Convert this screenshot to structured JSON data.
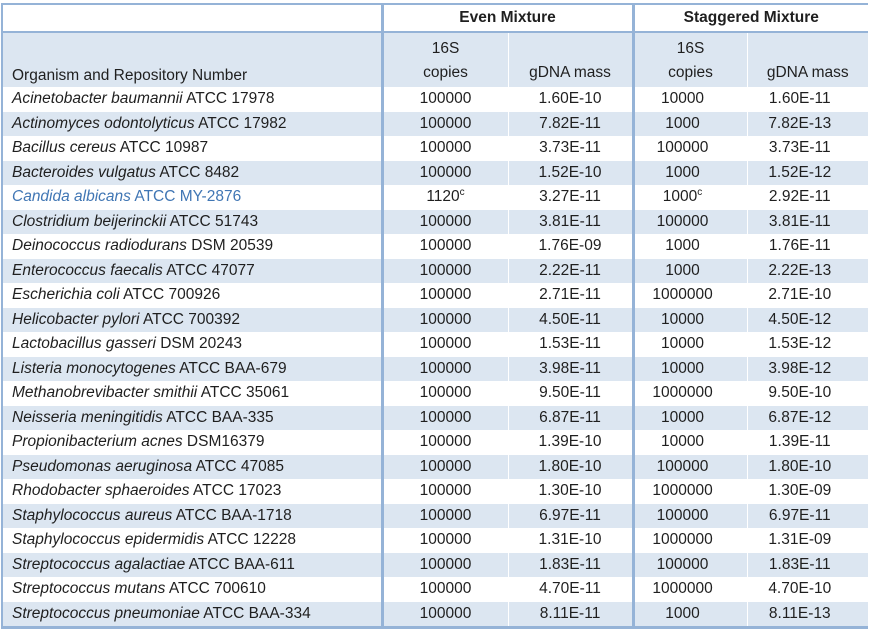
{
  "table": {
    "col1_header": "Organism and Repository Number",
    "group_headers": [
      "Even Mixture",
      "Staggered Mixture"
    ],
    "sub_headers": [
      {
        "copies_line1": "16S",
        "copies_line2": "copies",
        "gdna": "gDNA mass"
      },
      {
        "copies_line1": "16S",
        "copies_line2": "copies",
        "gdna": "gDNA mass"
      }
    ],
    "colors": {
      "row_shade": "#DCE6F1",
      "border_blue": "#95B3D7",
      "highlight_text": "#4076B4"
    },
    "rows": [
      {
        "organism": "Acinetobacter baumannii",
        "repo": "ATCC 17978",
        "even_16s": "100000",
        "even_16s_sup": "",
        "even_gdna": "1.60E-10",
        "stag_16s": "10000",
        "stag_16s_sup": "",
        "stag_gdna": "1.60E-11"
      },
      {
        "organism": "Actinomyces odontolyticus",
        "repo": "ATCC 17982",
        "even_16s": "100000",
        "even_16s_sup": "",
        "even_gdna": "7.82E-11",
        "stag_16s": "1000",
        "stag_16s_sup": "",
        "stag_gdna": "7.82E-13"
      },
      {
        "organism": "Bacillus cereus",
        "repo": "ATCC 10987",
        "even_16s": "100000",
        "even_16s_sup": "",
        "even_gdna": "3.73E-11",
        "stag_16s": "100000",
        "stag_16s_sup": "",
        "stag_gdna": "3.73E-11"
      },
      {
        "organism": "Bacteroides vulgatus",
        "repo": "ATCC 8482",
        "even_16s": "100000",
        "even_16s_sup": "",
        "even_gdna": "1.52E-10",
        "stag_16s": "1000",
        "stag_16s_sup": "",
        "stag_gdna": "1.52E-12"
      },
      {
        "organism": "Candida albicans",
        "repo": "ATCC MY-2876",
        "even_16s": "1120",
        "even_16s_sup": "c",
        "even_gdna": "3.27E-11",
        "stag_16s": "1000",
        "stag_16s_sup": "c",
        "stag_gdna": "2.92E-11",
        "highlight": true
      },
      {
        "organism": "Clostridium beijerinckii",
        "repo": "ATCC 51743",
        "even_16s": "100000",
        "even_16s_sup": "",
        "even_gdna": "3.81E-11",
        "stag_16s": "100000",
        "stag_16s_sup": "",
        "stag_gdna": "3.81E-11"
      },
      {
        "organism": "Deinococcus radiodurans",
        "repo": "DSM 20539",
        "even_16s": "100000",
        "even_16s_sup": "",
        "even_gdna": "1.76E-09",
        "stag_16s": "1000",
        "stag_16s_sup": "",
        "stag_gdna": "1.76E-11"
      },
      {
        "organism": "Enterococcus faecalis",
        "repo": "ATCC 47077",
        "even_16s": "100000",
        "even_16s_sup": "",
        "even_gdna": "2.22E-11",
        "stag_16s": "1000",
        "stag_16s_sup": "",
        "stag_gdna": "2.22E-13"
      },
      {
        "organism": "Escherichia coli",
        "repo": "ATCC 700926",
        "even_16s": "100000",
        "even_16s_sup": "",
        "even_gdna": "2.71E-11",
        "stag_16s": "1000000",
        "stag_16s_sup": "",
        "stag_gdna": "2.71E-10"
      },
      {
        "organism": "Helicobacter pylori",
        "repo": "ATCC 700392",
        "even_16s": "100000",
        "even_16s_sup": "",
        "even_gdna": "4.50E-11",
        "stag_16s": "10000",
        "stag_16s_sup": "",
        "stag_gdna": "4.50E-12"
      },
      {
        "organism": "Lactobacillus gasseri",
        "repo": "DSM 20243",
        "even_16s": "100000",
        "even_16s_sup": "",
        "even_gdna": "1.53E-11",
        "stag_16s": "10000",
        "stag_16s_sup": "",
        "stag_gdna": "1.53E-12"
      },
      {
        "organism": "Listeria monocytogenes",
        "repo": "ATCC BAA-679",
        "even_16s": "100000",
        "even_16s_sup": "",
        "even_gdna": "3.98E-11",
        "stag_16s": "10000",
        "stag_16s_sup": "",
        "stag_gdna": "3.98E-12"
      },
      {
        "organism": "Methanobrevibacter smithii",
        "repo": "ATCC 35061",
        "even_16s": "100000",
        "even_16s_sup": "",
        "even_gdna": "9.50E-11",
        "stag_16s": "1000000",
        "stag_16s_sup": "",
        "stag_gdna": "9.50E-10"
      },
      {
        "organism": "Neisseria meningitidis",
        "repo": "ATCC BAA-335",
        "even_16s": "100000",
        "even_16s_sup": "",
        "even_gdna": "6.87E-11",
        "stag_16s": "10000",
        "stag_16s_sup": "",
        "stag_gdna": "6.87E-12"
      },
      {
        "organism": "Propionibacterium acnes",
        "repo": "DSM16379",
        "even_16s": "100000",
        "even_16s_sup": "",
        "even_gdna": "1.39E-10",
        "stag_16s": "10000",
        "stag_16s_sup": "",
        "stag_gdna": "1.39E-11"
      },
      {
        "organism": "Pseudomonas aeruginosa",
        "repo": "ATCC 47085",
        "even_16s": "100000",
        "even_16s_sup": "",
        "even_gdna": "1.80E-10",
        "stag_16s": "100000",
        "stag_16s_sup": "",
        "stag_gdna": "1.80E-10"
      },
      {
        "organism": "Rhodobacter sphaeroides",
        "repo": "ATCC 17023",
        "even_16s": "100000",
        "even_16s_sup": "",
        "even_gdna": "1.30E-10",
        "stag_16s": "1000000",
        "stag_16s_sup": "",
        "stag_gdna": "1.30E-09"
      },
      {
        "organism": "Staphylococcus aureus",
        "repo": "ATCC BAA-1718",
        "even_16s": "100000",
        "even_16s_sup": "",
        "even_gdna": "6.97E-11",
        "stag_16s": "100000",
        "stag_16s_sup": "",
        "stag_gdna": "6.97E-11"
      },
      {
        "organism": "Staphylococcus epidermidis",
        "repo": "ATCC 12228",
        "even_16s": "100000",
        "even_16s_sup": "",
        "even_gdna": "1.31E-10",
        "stag_16s": "1000000",
        "stag_16s_sup": "",
        "stag_gdna": "1.31E-09"
      },
      {
        "organism": "Streptococcus agalactiae",
        "repo": "ATCC BAA-611",
        "even_16s": "100000",
        "even_16s_sup": "",
        "even_gdna": "1.83E-11",
        "stag_16s": "100000",
        "stag_16s_sup": "",
        "stag_gdna": "1.83E-11"
      },
      {
        "organism": "Streptococcus mutans",
        "repo": "ATCC 700610",
        "even_16s": "100000",
        "even_16s_sup": "",
        "even_gdna": "4.70E-11",
        "stag_16s": "1000000",
        "stag_16s_sup": "",
        "stag_gdna": "4.70E-10"
      },
      {
        "organism": "Streptococcus pneumoniae",
        "repo": "ATCC BAA-334",
        "even_16s": "100000",
        "even_16s_sup": "",
        "even_gdna": "8.11E-11",
        "stag_16s": "1000",
        "stag_16s_sup": "",
        "stag_gdna": "8.11E-13"
      }
    ]
  }
}
